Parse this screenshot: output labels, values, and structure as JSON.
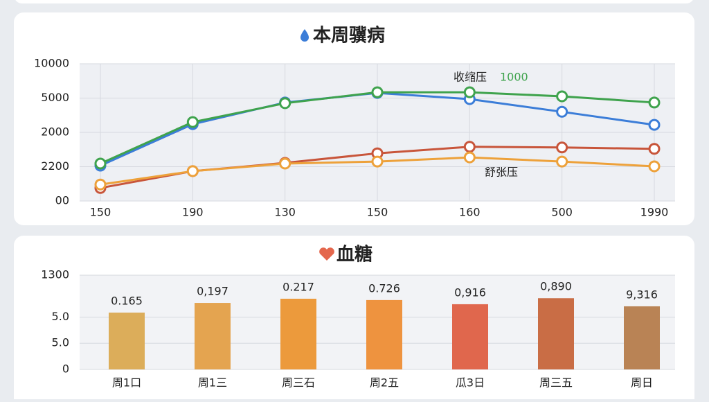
{
  "chart_data": [
    {
      "type": "line",
      "title": "本周骥病",
      "categories": [
        "150",
        "190",
        "130",
        "150",
        "160",
        "500",
        "1990"
      ],
      "ylim": [
        0,
        4
      ],
      "yticks": [
        {
          "value": 0,
          "label": "00"
        },
        {
          "value": 1,
          "label": "2200"
        },
        {
          "value": 2,
          "label": "2000"
        },
        {
          "value": 3,
          "label": "5000"
        },
        {
          "value": 4,
          "label": "10000"
        }
      ],
      "grid": true,
      "series": [
        {
          "color": "#3b7dd8",
          "values": [
            1.03,
            2.24,
            2.87,
            3.15,
            2.97,
            2.6,
            2.22
          ]
        },
        {
          "color": "#3fa34d",
          "values": [
            1.09,
            2.3,
            2.85,
            3.17,
            3.17,
            3.05,
            2.87
          ]
        },
        {
          "color": "#c8553a",
          "values": [
            0.38,
            0.87,
            1.11,
            1.39,
            1.58,
            1.56,
            1.52
          ]
        },
        {
          "color": "#eda13a",
          "values": [
            0.48,
            0.87,
            1.09,
            1.15,
            1.27,
            1.15,
            1.01
          ]
        }
      ],
      "annotations": [
        "收缩压",
        "1000",
        "舒张压"
      ]
    },
    {
      "type": "bar",
      "title": "血糖",
      "categories": [
        "周1口",
        "周1三",
        "周三石",
        "周2五",
        "瓜3日",
        "周三五",
        "周日"
      ],
      "ylim": [
        0,
        3.6
      ],
      "yticks": [
        0,
        {
          "value": 1,
          "label": "5.0"
        },
        {
          "value": 2,
          "label": "5.0"
        },
        {
          "value": 3.6,
          "label": "1300"
        }
      ],
      "grid": true,
      "values": [
        2.17,
        2.54,
        2.7,
        2.65,
        2.49,
        2.72,
        2.41
      ],
      "value_labels": [
        "0.165",
        "0,197",
        "0.217",
        "0.726",
        "0,916",
        "0,890",
        "9,316"
      ],
      "colors": [
        "#dcad5a",
        "#e4a450",
        "#ec9a3c",
        "#ee933f",
        "#e0674d",
        "#c96d45",
        "#b98355"
      ]
    }
  ]
}
